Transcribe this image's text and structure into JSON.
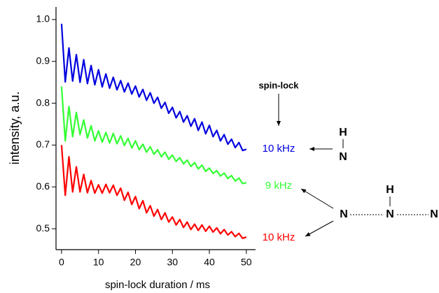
{
  "chart_data": {
    "type": "line",
    "x_label": "spin-lock duration / ms",
    "y_label": "intensity, a.u.",
    "xlim": [
      -1.5,
      52.5
    ],
    "ylim": [
      0.45,
      1.03
    ],
    "xticks": [
      0,
      10,
      20,
      30,
      40,
      50
    ],
    "yticks": [
      0.5,
      0.6,
      0.7,
      0.8,
      0.9,
      {
        "value": 1,
        "label": "1.0"
      }
    ],
    "x": [
      0,
      1,
      2,
      3,
      4,
      5,
      6,
      7,
      8,
      9,
      10,
      11,
      12,
      13,
      14,
      15,
      16,
      17,
      18,
      19,
      20,
      21,
      22,
      23,
      24,
      25,
      26,
      27,
      28,
      29,
      30,
      31,
      32,
      33,
      34,
      35,
      36,
      37,
      38,
      39,
      40,
      41,
      42,
      43,
      44,
      45,
      46,
      47,
      48,
      49,
      50
    ],
    "series": [
      {
        "name": "10 kHz",
        "color": "#0000e0",
        "values": [
          0.99,
          0.851,
          0.932,
          0.853,
          0.916,
          0.85,
          0.904,
          0.847,
          0.89,
          0.844,
          0.88,
          0.839,
          0.87,
          0.836,
          0.862,
          0.832,
          0.854,
          0.827,
          0.848,
          0.822,
          0.841,
          0.815,
          0.833,
          0.807,
          0.825,
          0.8,
          0.814,
          0.788,
          0.802,
          0.776,
          0.79,
          0.765,
          0.78,
          0.755,
          0.77,
          0.745,
          0.763,
          0.735,
          0.755,
          0.727,
          0.747,
          0.72,
          0.735,
          0.71,
          0.725,
          0.702,
          0.714,
          0.694,
          0.706,
          0.687,
          0.69
        ]
      },
      {
        "name": "9 kHz",
        "color": "#33ff33",
        "values": [
          0.84,
          0.71,
          0.792,
          0.72,
          0.778,
          0.725,
          0.76,
          0.717,
          0.746,
          0.71,
          0.734,
          0.707,
          0.73,
          0.705,
          0.728,
          0.703,
          0.722,
          0.699,
          0.716,
          0.693,
          0.71,
          0.689,
          0.702,
          0.683,
          0.696,
          0.678,
          0.689,
          0.672,
          0.683,
          0.666,
          0.676,
          0.661,
          0.67,
          0.655,
          0.664,
          0.649,
          0.658,
          0.643,
          0.652,
          0.637,
          0.645,
          0.632,
          0.639,
          0.626,
          0.633,
          0.62,
          0.627,
          0.614,
          0.621,
          0.608,
          0.61
        ]
      },
      {
        "name": "10 kHz",
        "color": "#ff0000",
        "values": [
          0.7,
          0.58,
          0.672,
          0.588,
          0.648,
          0.588,
          0.63,
          0.586,
          0.615,
          0.585,
          0.605,
          0.585,
          0.606,
          0.586,
          0.604,
          0.58,
          0.597,
          0.568,
          0.587,
          0.558,
          0.577,
          0.548,
          0.567,
          0.538,
          0.555,
          0.53,
          0.546,
          0.522,
          0.538,
          0.516,
          0.528,
          0.509,
          0.522,
          0.503,
          0.516,
          0.498,
          0.511,
          0.496,
          0.509,
          0.494,
          0.506,
          0.492,
          0.502,
          0.488,
          0.498,
          0.485,
          0.493,
          0.481,
          0.489,
          0.477,
          0.48
        ]
      }
    ],
    "annotations": [
      "spin-lock",
      "H",
      "N",
      "N",
      "H",
      "N",
      "N"
    ]
  }
}
